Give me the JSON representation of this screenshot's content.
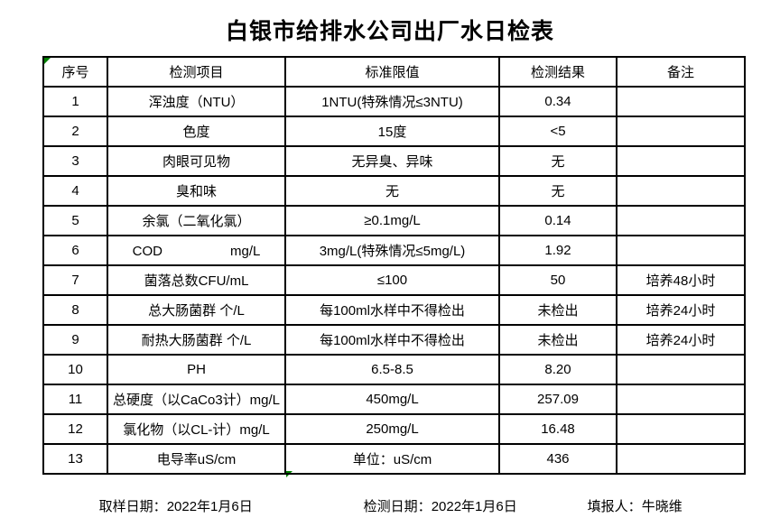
{
  "title": "白银市给排水公司出厂水日检表",
  "table": {
    "headers": [
      "序号",
      "检测项目",
      "标准限值",
      "检测结果",
      "备注"
    ],
    "rows": [
      {
        "no": "1",
        "item": "浑浊度（NTU）",
        "standard": "1NTU(特殊情况≤3NTU)",
        "result": "0.34",
        "remark": ""
      },
      {
        "no": "2",
        "item": "色度",
        "standard": "15度",
        "result": "<5",
        "remark": ""
      },
      {
        "no": "3",
        "item": "肉眼可见物",
        "standard": "无异臭、异味",
        "result": "无",
        "remark": ""
      },
      {
        "no": "4",
        "item": "臭和味",
        "standard": "无",
        "result": "无",
        "remark": ""
      },
      {
        "no": "5",
        "item": "余氯（二氧化氯）",
        "standard": "≥0.1mg/L",
        "result": "0.14",
        "remark": ""
      },
      {
        "no": "6",
        "item": "COD　　　　　mg/L",
        "standard": "3mg/L(特殊情况≤5mg/L)",
        "result": "1.92",
        "remark": ""
      },
      {
        "no": "7",
        "item": "菌落总数CFU/mL",
        "standard": "≤100",
        "result": "50",
        "remark": "培养48小时"
      },
      {
        "no": "8",
        "item": "总大肠菌群 个/L",
        "standard": "每100ml水样中不得检出",
        "result": "未检出",
        "remark": "培养24小时"
      },
      {
        "no": "9",
        "item": "耐热大肠菌群 个/L",
        "standard": "每100ml水样中不得检出",
        "result": "未检出",
        "remark": "培养24小时"
      },
      {
        "no": "10",
        "item": "PH",
        "standard": "6.5-8.5",
        "result": "8.20",
        "remark": ""
      },
      {
        "no": "11",
        "item": "总硬度（以CaCo3计）mg/L",
        "standard": "450mg/L",
        "result": "257.09",
        "remark": ""
      },
      {
        "no": "12",
        "item": "氯化物（以CL-计）mg/L",
        "standard": "250mg/L",
        "result": "16.48",
        "remark": ""
      },
      {
        "no": "13",
        "item": "电导率uS/cm",
        "standard": "单位：uS/cm",
        "result": "436",
        "remark": ""
      }
    ]
  },
  "footer": {
    "items": [
      {
        "label": "取样日期：",
        "value": "2022年1月6日"
      },
      {
        "label": "检测日期：",
        "value": "2022年1月6日"
      },
      {
        "label": "填报人：",
        "value": "牛晓维"
      }
    ]
  },
  "colors": {
    "marker_green": "#008000",
    "border": "#000000",
    "background": "#ffffff"
  }
}
